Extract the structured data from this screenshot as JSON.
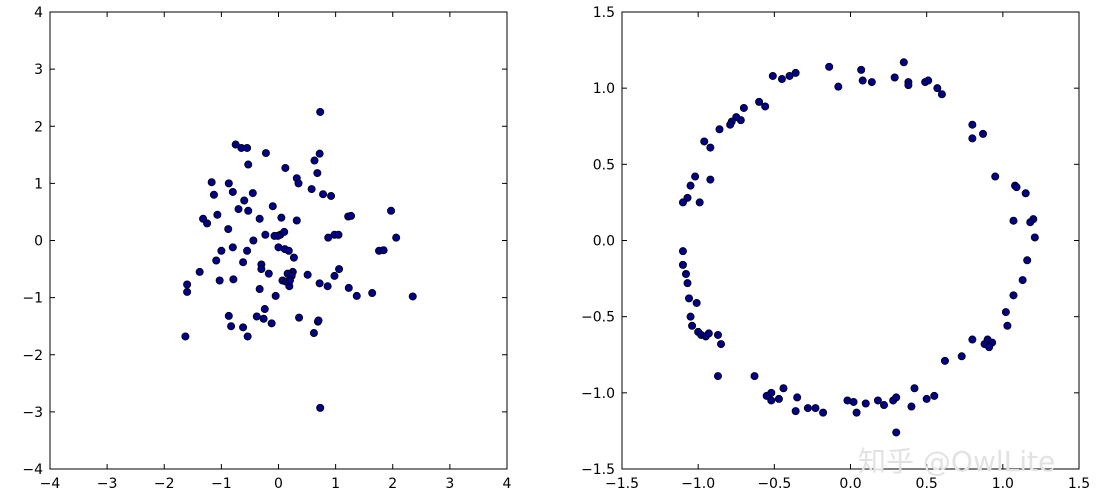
{
  "watermark": "知乎 @OwlLite",
  "colors": {
    "marker_fill": "#00008b",
    "marker_edge": "#000000",
    "frame": "#000000"
  },
  "chart_data": [
    {
      "type": "scatter",
      "title": "",
      "xlabel": "",
      "ylabel": "",
      "xlim": [
        -4,
        4
      ],
      "ylim": [
        -4,
        4
      ],
      "xticks": [
        -4,
        -3,
        -2,
        -1,
        0,
        1,
        2,
        3,
        4
      ],
      "yticks": [
        -4,
        -3,
        -2,
        -1,
        0,
        1,
        2,
        3,
        4
      ],
      "xtick_labels": [
        "−4",
        "−3",
        "−2",
        "−1",
        "0",
        "1",
        "2",
        "3",
        "4"
      ],
      "ytick_labels": [
        "−4",
        "−3",
        "−2",
        "−1",
        "0",
        "1",
        "2",
        "3",
        "4"
      ],
      "grid": false,
      "series": [
        {
          "x": [
            0.73,
            0.72,
            -0.75,
            -0.65,
            -0.55,
            -0.22,
            0.12,
            0.68,
            0.63,
            -0.53,
            0.32,
            0.35,
            0.78,
            0.92,
            0.58,
            -1.17,
            -0.87,
            -1.13,
            -0.8,
            -0.45,
            -0.6,
            -0.7,
            -0.1,
            0.05,
            0.03,
            0.32,
            1.22,
            1.27,
            -1.07,
            -1.25,
            -1.32,
            -0.33,
            -0.53,
            -0.88,
            0.1,
            -0.01,
            -0.23,
            0.98,
            0.87,
            1.05,
            1.97,
            2.06,
            1.76,
            -0.44,
            -0.07,
            0.11,
            0.18,
            0.27,
            0.25,
            -0.3,
            -1.6,
            -1.6,
            -1.38,
            -1.03,
            -0.79,
            -1.09,
            -0.62,
            -0.3,
            -0.17,
            0.16,
            0.23,
            0.07,
            -0.33,
            -0.05,
            0.13,
            0.19,
            0.51,
            0.98,
            1.06,
            0.72,
            0.86,
            1.23,
            1.37,
            1.64,
            2.35,
            0.62,
            -0.24,
            -0.38,
            -0.26,
            -0.12,
            0.36,
            0.69,
            0.7,
            -0.54,
            -0.62,
            -0.83,
            -0.87,
            -1.63,
            0.73,
            0.0,
            0.2,
            -0.55,
            -0.8,
            -1.0,
            1.84
          ],
          "y": [
            2.25,
            1.52,
            1.68,
            1.62,
            1.62,
            1.53,
            1.27,
            1.18,
            1.4,
            1.33,
            1.09,
            1.0,
            0.81,
            0.78,
            0.9,
            1.02,
            1.0,
            0.8,
            0.85,
            0.83,
            0.7,
            0.55,
            0.6,
            0.4,
            0.1,
            0.35,
            0.42,
            0.43,
            0.45,
            0.3,
            0.38,
            0.38,
            0.52,
            0.2,
            0.15,
            0.08,
            0.1,
            0.1,
            0.05,
            0.1,
            0.52,
            0.05,
            -0.18,
            0.0,
            0.08,
            -0.15,
            -0.18,
            -0.3,
            -0.55,
            -0.42,
            -0.77,
            -0.9,
            -0.55,
            -0.7,
            -0.68,
            -0.35,
            -0.38,
            -0.5,
            -0.58,
            -0.58,
            -0.62,
            -0.7,
            -0.85,
            -0.97,
            -0.72,
            -0.8,
            -0.6,
            -0.62,
            -0.5,
            -0.75,
            -0.8,
            -0.83,
            -0.97,
            -0.92,
            -0.98,
            -1.62,
            -1.2,
            -1.33,
            -1.37,
            -1.45,
            -1.35,
            -1.42,
            -1.4,
            -1.68,
            -1.52,
            -1.5,
            -1.32,
            -1.68,
            -2.93,
            -0.12,
            -0.7,
            -0.18,
            -0.12,
            -0.18,
            -0.17
          ]
        }
      ]
    },
    {
      "type": "scatter",
      "title": "",
      "xlabel": "",
      "ylabel": "",
      "xlim": [
        -1.5,
        1.5
      ],
      "ylim": [
        -1.5,
        1.5
      ],
      "xticks": [
        -1.5,
        -1.0,
        -0.5,
        0.0,
        0.5,
        1.0,
        1.5
      ],
      "yticks": [
        -1.5,
        -1.0,
        -0.5,
        0.0,
        0.5,
        1.0,
        1.5
      ],
      "xtick_labels": [
        "−1.5",
        "−1.0",
        "−0.5",
        "0.0",
        "0.5",
        "1.0",
        "1.5"
      ],
      "ytick_labels": [
        "−1.5",
        "−1.0",
        "−0.5",
        "0.0",
        "0.5",
        "1.0",
        "1.5"
      ],
      "grid": false,
      "series": [
        {
          "x": [
            0.35,
            -0.14,
            0.07,
            0.29,
            0.38,
            0.38,
            0.49,
            0.51,
            0.57,
            -0.51,
            -0.45,
            -0.4,
            -0.36,
            -0.08,
            0.14,
            0.6,
            0.08,
            -0.56,
            -0.6,
            -0.7,
            -0.72,
            -0.75,
            -0.78,
            -0.79,
            -0.86,
            -0.96,
            -0.92,
            0.8,
            0.8,
            0.87,
            -0.92,
            -1.02,
            -1.05,
            -1.07,
            -0.99,
            -1.1,
            0.95,
            1.08,
            1.09,
            1.15,
            1.2,
            1.18,
            1.21,
            1.16,
            1.13,
            -1.1,
            -1.1,
            -1.08,
            -1.07,
            -1.06,
            -1.01,
            -1.05,
            -1.04,
            -1.0,
            -0.98,
            -0.95,
            -0.93,
            -0.87,
            -0.85,
            -0.87,
            1.07,
            1.07,
            1.02,
            1.03,
            0.93,
            0.9,
            0.88,
            0.91,
            0.8,
            0.73,
            0.62,
            -0.63,
            -0.55,
            -0.52,
            -0.47,
            -0.44,
            -0.35,
            -0.36,
            -0.28,
            -0.23,
            -0.18,
            -0.02,
            0.02,
            0.04,
            0.1,
            0.18,
            0.22,
            0.28,
            0.3,
            0.42,
            0.4,
            0.5,
            0.55,
            0.3,
            -0.52
          ],
          "y": [
            1.17,
            1.14,
            1.12,
            1.07,
            1.04,
            1.02,
            1.04,
            1.05,
            1.0,
            1.08,
            1.06,
            1.08,
            1.1,
            1.01,
            1.04,
            0.96,
            1.05,
            0.88,
            0.91,
            0.87,
            0.79,
            0.81,
            0.78,
            0.76,
            0.73,
            0.65,
            0.61,
            0.76,
            0.67,
            0.7,
            0.4,
            0.42,
            0.36,
            0.28,
            0.25,
            0.25,
            0.42,
            0.36,
            0.35,
            0.31,
            0.14,
            0.12,
            0.02,
            -0.13,
            -0.26,
            -0.07,
            -0.16,
            -0.22,
            -0.28,
            -0.38,
            -0.41,
            -0.5,
            -0.56,
            -0.6,
            -0.62,
            -0.63,
            -0.61,
            -0.62,
            -0.68,
            -0.89,
            0.13,
            -0.36,
            -0.47,
            -0.56,
            -0.67,
            -0.65,
            -0.68,
            -0.7,
            -0.65,
            -0.76,
            -0.79,
            -0.89,
            -1.02,
            -1.05,
            -1.04,
            -0.97,
            -1.03,
            -1.12,
            -1.1,
            -1.1,
            -1.13,
            -1.05,
            -1.06,
            -1.13,
            -1.07,
            -1.05,
            -1.08,
            -1.05,
            -1.03,
            -0.97,
            -1.09,
            -1.04,
            -1.02,
            -1.26,
            -1.0
          ]
        }
      ]
    }
  ]
}
